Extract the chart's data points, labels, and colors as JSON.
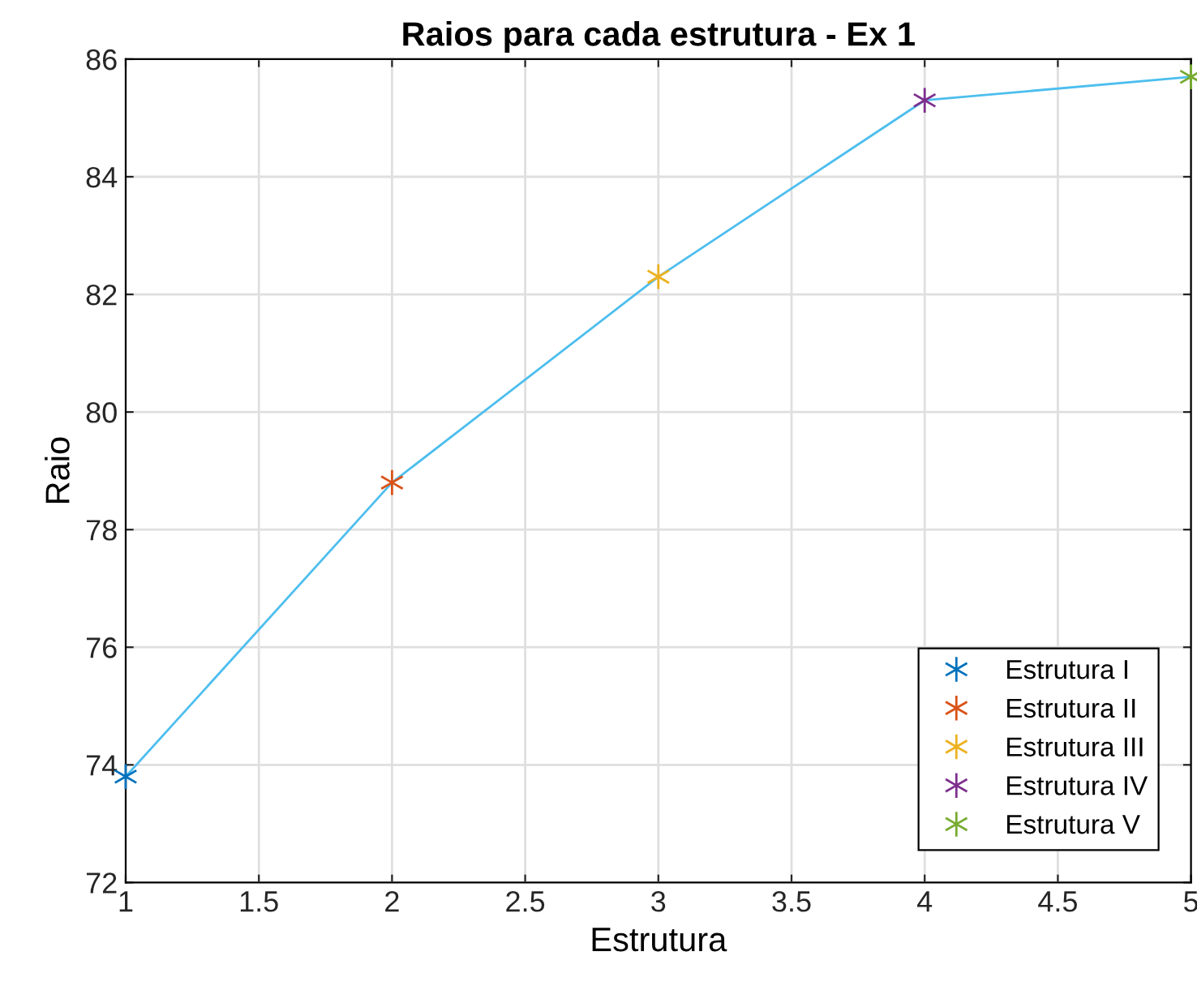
{
  "chart_data": {
    "type": "line",
    "title": "Raios para cada estrutura - Ex 1",
    "xlabel": "Estrutura",
    "ylabel": "Raio",
    "xlim": [
      1,
      5
    ],
    "xticks": [
      1,
      1.5,
      2,
      2.5,
      3,
      3.5,
      4,
      4.5,
      5
    ],
    "ylim": [
      72,
      86
    ],
    "yticks": [
      72,
      74,
      76,
      78,
      80,
      82,
      84,
      86
    ],
    "grid": true,
    "legend": "bottom right",
    "marker": "cross",
    "series": [
      {
        "marker": "none",
        "color": "#4dbeee",
        "x": [
          1,
          2,
          3,
          4,
          5
        ],
        "values": [
          73.8,
          78.8,
          82.3,
          85.3,
          85.7
        ]
      },
      {
        "type": "scatter",
        "name": "Estrutura I",
        "color": "#0072bd",
        "x": [
          1
        ],
        "values": [
          73.8
        ]
      },
      {
        "type": "scatter",
        "name": "Estrutura II",
        "color": "#d95319",
        "x": [
          2
        ],
        "values": [
          78.8
        ]
      },
      {
        "type": "scatter",
        "name": "Estrutura III",
        "color": "#edb120",
        "x": [
          3
        ],
        "values": [
          82.3
        ]
      },
      {
        "type": "scatter",
        "name": "Estrutura IV",
        "color": "#7e2f8e",
        "x": [
          4
        ],
        "values": [
          85.3
        ]
      },
      {
        "type": "scatter",
        "name": "Estrutura V",
        "color": "#77ac30",
        "x": [
          5
        ],
        "values": [
          85.7
        ]
      }
    ]
  }
}
